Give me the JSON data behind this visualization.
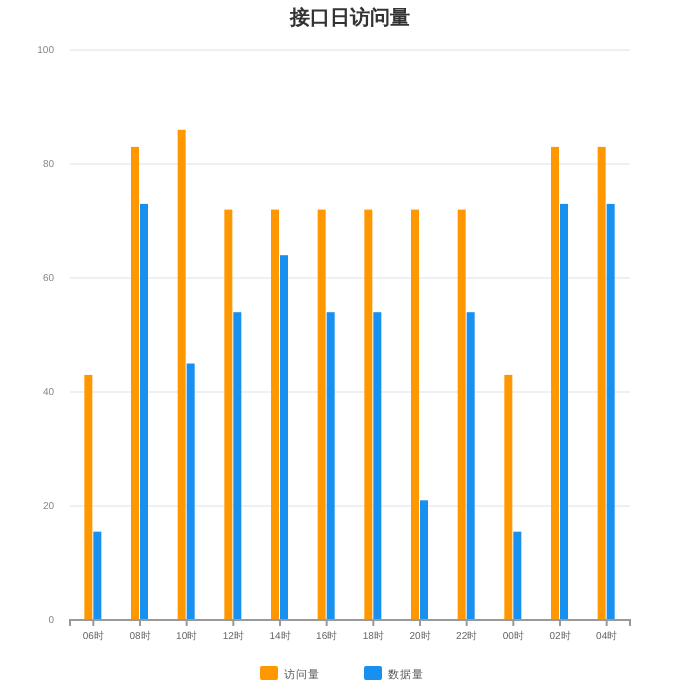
{
  "chart_data": {
    "type": "bar",
    "title": "接口日访问量",
    "categories": [
      "06时",
      "08时",
      "10时",
      "12时",
      "14时",
      "16时",
      "18时",
      "20时",
      "22时",
      "00时",
      "02时",
      "04时"
    ],
    "series": [
      {
        "name": "访问量",
        "color": "#ff9800",
        "values": [
          43,
          83,
          86,
          72,
          72,
          72,
          72,
          72,
          72,
          43,
          83,
          83
        ]
      },
      {
        "name": "数据量",
        "color": "#1890f0",
        "values": [
          15.5,
          73,
          45,
          54,
          64,
          54,
          54,
          21,
          54,
          15.5,
          73,
          73
        ]
      }
    ],
    "ylim": [
      0,
      100
    ],
    "yticks": [
      0,
      20,
      40,
      60,
      80,
      100
    ],
    "grid": "y",
    "legend": "bottom"
  }
}
